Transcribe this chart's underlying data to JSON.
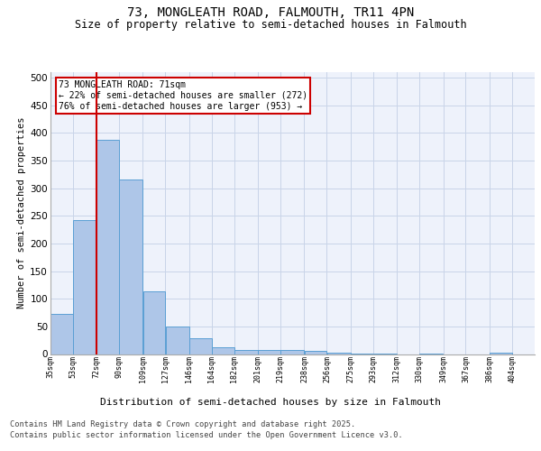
{
  "title_line1": "73, MONGLEATH ROAD, FALMOUTH, TR11 4PN",
  "title_line2": "Size of property relative to semi-detached houses in Falmouth",
  "xlabel": "Distribution of semi-detached houses by size in Falmouth",
  "ylabel": "Number of semi-detached properties",
  "footer_line1": "Contains HM Land Registry data © Crown copyright and database right 2025.",
  "footer_line2": "Contains public sector information licensed under the Open Government Licence v3.0.",
  "annotation_line1": "73 MONGLEATH ROAD: 71sqm",
  "annotation_line2": "← 22% of semi-detached houses are smaller (272)",
  "annotation_line3": "76% of semi-detached houses are larger (953) →",
  "property_size": 71,
  "bar_left_edges": [
    35,
    53,
    72,
    90,
    109,
    127,
    146,
    164,
    182,
    201,
    219,
    238,
    256,
    275,
    293,
    312,
    330,
    349,
    367,
    386
  ],
  "bar_widths": [
    18,
    19,
    18,
    19,
    18,
    19,
    18,
    18,
    19,
    18,
    19,
    18,
    19,
    18,
    19,
    18,
    19,
    18,
    19,
    18
  ],
  "bar_heights": [
    73,
    242,
    387,
    316,
    113,
    50,
    29,
    13,
    7,
    7,
    8,
    6,
    2,
    1,
    1,
    0,
    1,
    0,
    0,
    3
  ],
  "bar_labels": [
    "35sqm",
    "53sqm",
    "72sqm",
    "90sqm",
    "109sqm",
    "127sqm",
    "146sqm",
    "164sqm",
    "182sqm",
    "201sqm",
    "219sqm",
    "238sqm",
    "256sqm",
    "275sqm",
    "293sqm",
    "312sqm",
    "330sqm",
    "349sqm",
    "367sqm",
    "386sqm",
    "404sqm"
  ],
  "bar_color": "#aec6e8",
  "bar_edge_color": "#5a9fd4",
  "red_line_color": "#cc0000",
  "annotation_box_color": "#cc0000",
  "background_color": "#eef2fb",
  "grid_color": "#c8d4e8",
  "ylim": [
    0,
    510
  ],
  "yticks": [
    0,
    50,
    100,
    150,
    200,
    250,
    300,
    350,
    400,
    450,
    500
  ]
}
